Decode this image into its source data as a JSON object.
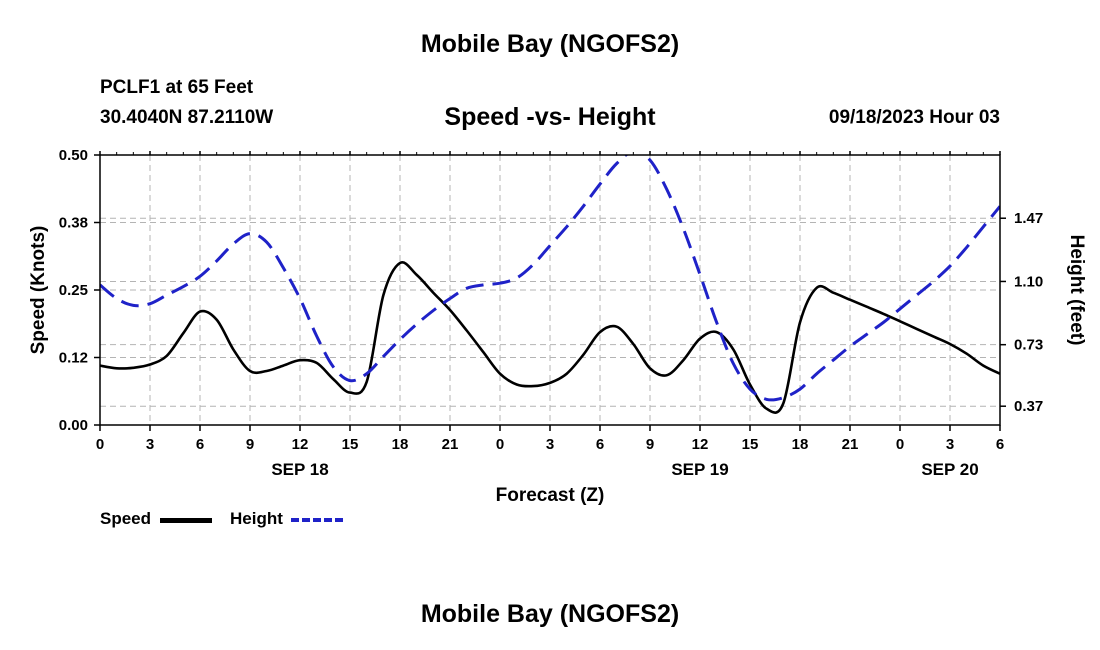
{
  "page": {
    "title_top": "Mobile Bay (NGOFS2)",
    "title_bottom": "Mobile Bay (NGOFS2)",
    "station": "PCLF1 at 65 Feet",
    "coords": "30.4040N  87.2110W",
    "datetime": "09/18/2023 Hour 03"
  },
  "chart_data": {
    "type": "line",
    "title": "Speed -vs- Height",
    "xlabel": "Forecast (Z)",
    "ylabel": "Speed (Knots)",
    "y2label": "Height (feet)",
    "xlim": [
      0,
      54
    ],
    "ylim": [
      0,
      0.5
    ],
    "y2lim": [
      0.26,
      1.84
    ],
    "grid": true,
    "x_ticks": [
      0,
      3,
      6,
      9,
      12,
      15,
      18,
      21,
      24,
      27,
      30,
      33,
      36,
      39,
      42,
      45,
      48,
      51,
      54
    ],
    "x_tick_labels": [
      "0",
      "3",
      "6",
      "9",
      "12",
      "15",
      "18",
      "21",
      "0",
      "3",
      "6",
      "9",
      "12",
      "15",
      "18",
      "21",
      "0",
      "3",
      "6"
    ],
    "y_ticks": [
      0.0,
      0.125,
      0.25,
      0.375,
      0.5
    ],
    "y_tick_labels": [
      "0.00",
      "0.12",
      "0.25",
      "0.38",
      "0.50"
    ],
    "y2_ticks": [
      0.37,
      0.73,
      1.1,
      1.47
    ],
    "y2_tick_labels": [
      "0.37",
      "0.73",
      "1.10",
      "1.47"
    ],
    "date_labels": [
      {
        "x": 12,
        "label": "SEP 18"
      },
      {
        "x": 36,
        "label": "SEP 19"
      },
      {
        "x": 51,
        "label": "SEP 20"
      }
    ],
    "series": [
      {
        "name": "Speed",
        "axis": "left",
        "color": "#000000",
        "style": "solid",
        "x": [
          0,
          1,
          2,
          3,
          4,
          5,
          6,
          7,
          8,
          9,
          10,
          11,
          12,
          13,
          14,
          15,
          16,
          17,
          18,
          19,
          20,
          21,
          22,
          23,
          24,
          25,
          26,
          27,
          28,
          29,
          30,
          31,
          32,
          33,
          34,
          35,
          36,
          37,
          38,
          39,
          40,
          41,
          42,
          43,
          44,
          45,
          46,
          47,
          48,
          49,
          50,
          51,
          52,
          53,
          54
        ],
        "values": [
          0.11,
          0.105,
          0.106,
          0.112,
          0.128,
          0.17,
          0.21,
          0.195,
          0.14,
          0.1,
          0.1,
          0.11,
          0.12,
          0.115,
          0.085,
          0.06,
          0.08,
          0.24,
          0.3,
          0.278,
          0.245,
          0.213,
          0.175,
          0.135,
          0.095,
          0.075,
          0.072,
          0.078,
          0.095,
          0.13,
          0.172,
          0.182,
          0.15,
          0.105,
          0.092,
          0.12,
          0.16,
          0.172,
          0.14,
          0.075,
          0.03,
          0.04,
          0.19,
          0.254,
          0.245,
          0.232,
          0.219,
          0.206,
          0.192,
          0.178,
          0.164,
          0.15,
          0.132,
          0.11,
          0.095
        ]
      },
      {
        "name": "Height",
        "axis": "right",
        "color": "#1f22c8",
        "style": "dashed",
        "x": [
          0,
          1,
          2,
          3,
          4,
          5,
          6,
          7,
          8,
          9,
          10,
          11,
          12,
          13,
          14,
          15,
          16,
          17,
          18,
          19,
          20,
          21,
          22,
          23,
          24,
          25,
          26,
          27,
          28,
          29,
          30,
          31,
          32,
          33,
          34,
          35,
          36,
          37,
          38,
          39,
          40,
          41,
          42,
          43,
          44,
          45,
          46,
          47,
          48,
          49,
          50,
          51,
          52,
          53,
          54
        ],
        "values": [
          1.08,
          1.0,
          0.96,
          0.97,
          1.02,
          1.07,
          1.13,
          1.22,
          1.32,
          1.38,
          1.33,
          1.18,
          1.0,
          0.78,
          0.6,
          0.52,
          0.56,
          0.66,
          0.76,
          0.85,
          0.93,
          1.0,
          1.06,
          1.08,
          1.09,
          1.12,
          1.2,
          1.31,
          1.42,
          1.54,
          1.67,
          1.79,
          1.86,
          1.81,
          1.64,
          1.41,
          1.14,
          0.86,
          0.62,
          0.47,
          0.41,
          0.42,
          0.47,
          0.56,
          0.64,
          0.72,
          0.79,
          0.86,
          0.94,
          1.02,
          1.1,
          1.19,
          1.3,
          1.42,
          1.54
        ]
      }
    ],
    "legend": [
      {
        "label": "Speed"
      },
      {
        "label": "Height"
      }
    ]
  }
}
